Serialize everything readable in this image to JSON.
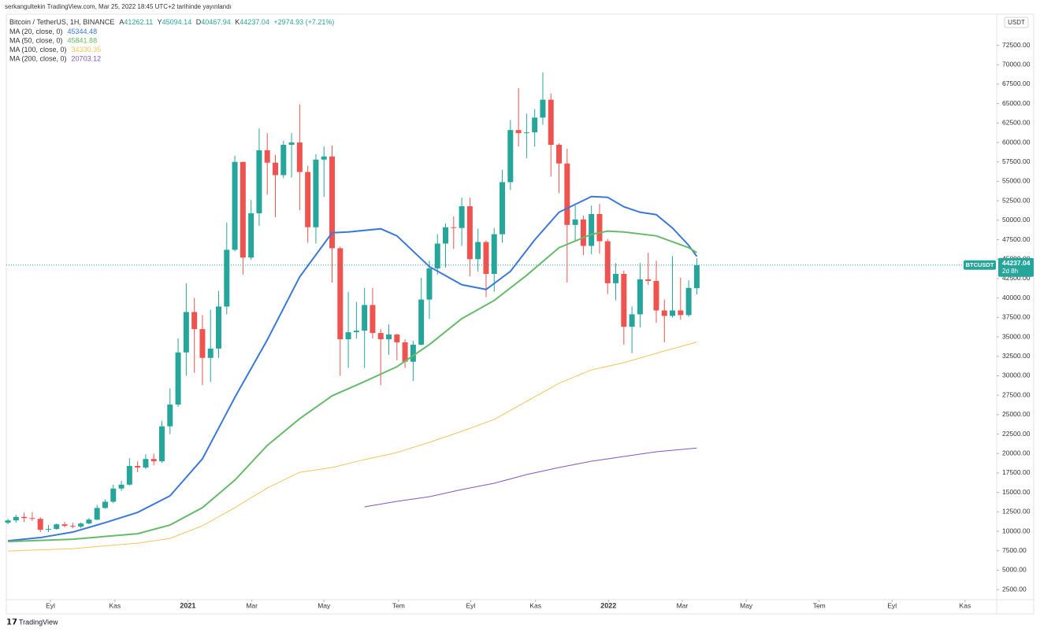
{
  "published": "serkangultekin TradingView.com, Mar 25, 2022 18:45 UTC+2 tarihinde yayınlandı",
  "brand": "TradingView",
  "chart_data": {
    "type": "candlestick",
    "symbol": "Bitcoin / TetherUS, 1H, BINANCE",
    "ohlc_labels": [
      "A",
      "Y",
      "D",
      "K"
    ],
    "change": "+2974.93 (+7.21%)",
    "currency": "USDT",
    "ticker": "BTCUSDT",
    "countdown": "2d 8h",
    "up_color": "#26a69a",
    "down_color": "#ef5350",
    "candles": {
      "open": [
        11100,
        11400,
        11850,
        11700,
        11600,
        10200,
        10300,
        10900,
        10700,
        10600,
        11000,
        11500,
        13000,
        13800,
        15500,
        16000,
        18400,
        18200,
        19300,
        19000,
        23500,
        26300,
        33000,
        38200,
        36000,
        32300,
        33500,
        38900,
        46200,
        57500,
        45200,
        50900,
        59000,
        57400,
        55800,
        59700,
        60000,
        56200,
        49100,
        57800,
        58200,
        46400,
        34700,
        35600,
        35800,
        39100,
        35500,
        34700,
        35300,
        34300,
        31800,
        34000,
        39800,
        43800,
        47000,
        49100,
        49000,
        51800,
        45000,
        47200,
        43100,
        48200,
        54900,
        61600,
        61200,
        61300,
        63200,
        65500,
        59700,
        57300,
        49400,
        50100,
        46700,
        50800,
        47300,
        41900,
        43100,
        36300,
        37900,
        42400,
        42200,
        38400,
        37700,
        38400,
        37800,
        41262.11
      ],
      "high": [
        11600,
        12100,
        12400,
        12450,
        11800,
        10800,
        11000,
        11200,
        11100,
        11150,
        11700,
        13400,
        14100,
        16000,
        16500,
        19400,
        19000,
        19900,
        20000,
        24200,
        28400,
        34800,
        41900,
        40000,
        37800,
        38500,
        40900,
        49700,
        58300,
        57500,
        52600,
        61800,
        61200,
        58400,
        60200,
        61200,
        64900,
        57000,
        58500,
        59500,
        59600,
        46600,
        40800,
        39500,
        41300,
        41300,
        36000,
        36600,
        35400,
        34700,
        34500,
        42600,
        44800,
        48200,
        49600,
        50500,
        52900,
        52900,
        48900,
        47400,
        49000,
        56500,
        62900,
        67000,
        63700,
        64300,
        69000,
        66300,
        59900,
        59200,
        51900,
        50600,
        51900,
        52100,
        47600,
        44500,
        43500,
        38900,
        44500,
        45800,
        44800,
        39800,
        45400,
        42600,
        42300,
        45094.14
      ],
      "low": [
        10900,
        11100,
        11200,
        11350,
        9900,
        9900,
        10200,
        10500,
        10400,
        10400,
        10900,
        11400,
        12900,
        13600,
        15200,
        15900,
        17600,
        18000,
        18500,
        18800,
        22500,
        26000,
        30000,
        30400,
        28800,
        29200,
        32300,
        37900,
        46000,
        43000,
        44900,
        49300,
        53300,
        50400,
        55400,
        55500,
        51300,
        47100,
        47000,
        53000,
        42000,
        30000,
        31000,
        34800,
        31000,
        34800,
        28800,
        32700,
        32000,
        31000,
        29300,
        33900,
        37300,
        43000,
        43900,
        46300,
        46700,
        42800,
        43400,
        40100,
        40800,
        47100,
        53900,
        59500,
        58000,
        59500,
        62300,
        55600,
        53500,
        42000,
        47300,
        45500,
        45600,
        45700,
        40500,
        39700,
        34000,
        32900,
        36200,
        41700,
        36800,
        34300,
        37500,
        37200,
        37600,
        40467.94
      ],
      "close": [
        11400,
        11850,
        11700,
        11600,
        10200,
        10300,
        10900,
        10700,
        10600,
        11000,
        11500,
        13000,
        13800,
        15500,
        16000,
        18400,
        18200,
        19300,
        19000,
        23500,
        26300,
        33000,
        38200,
        36000,
        32300,
        33500,
        38900,
        46200,
        57500,
        45200,
        50900,
        59000,
        57400,
        55800,
        59700,
        60000,
        56200,
        49100,
        57800,
        58200,
        46400,
        34700,
        35600,
        35800,
        39100,
        35500,
        34700,
        35300,
        34300,
        31800,
        34000,
        39800,
        43800,
        47000,
        49100,
        49000,
        51800,
        45000,
        47200,
        43100,
        48200,
        54900,
        61600,
        61200,
        61300,
        63200,
        65500,
        59700,
        57300,
        49400,
        50100,
        46700,
        50800,
        47300,
        41900,
        43100,
        36300,
        37900,
        42400,
        42200,
        38400,
        37700,
        38400,
        37800,
        41300,
        44237.04
      ]
    },
    "series": [
      {
        "name": "MA (20, close, 0)",
        "color": "#3b78d8",
        "x": [
          0,
          4,
          8,
          12,
          16,
          20,
          24,
          28,
          32,
          36,
          40,
          42,
          46,
          48,
          52,
          56,
          59,
          62,
          65,
          68,
          72,
          74,
          76,
          78,
          80,
          82,
          84,
          85
        ],
        "values": [
          8780,
          9190,
          9900,
          11110,
          12430,
          14560,
          19320,
          27220,
          34610,
          42720,
          48390,
          48490,
          48900,
          47990,
          44040,
          41710,
          41100,
          43430,
          47480,
          51030,
          53050,
          52950,
          51730,
          51030,
          50720,
          49000,
          46770,
          45344.48
        ]
      },
      {
        "name": "MA (50, close, 0)",
        "color": "#66bb6a",
        "x": [
          0,
          8,
          16,
          20,
          24,
          28,
          32,
          36,
          40,
          44,
          48,
          52,
          56,
          60,
          64,
          68,
          72,
          74,
          76,
          80,
          84,
          85
        ],
        "values": [
          8680,
          8980,
          9690,
          10810,
          13040,
          16580,
          21040,
          24480,
          27420,
          29250,
          31170,
          34010,
          37350,
          39680,
          42920,
          46470,
          48190,
          48600,
          48490,
          47990,
          46470,
          45841.88
        ]
      },
      {
        "name": "MA (100, close, 0)",
        "color": "#f2c45a",
        "x": [
          0,
          8,
          16,
          20,
          24,
          28,
          32,
          36,
          40,
          44,
          48,
          52,
          56,
          60,
          64,
          68,
          72,
          76,
          80,
          85
        ],
        "values": [
          7460,
          7770,
          8480,
          9080,
          10710,
          13040,
          15570,
          17590,
          18200,
          19220,
          20130,
          21440,
          22860,
          24380,
          26710,
          29040,
          30760,
          31680,
          32890,
          34330.35
        ]
      },
      {
        "name": "MA (200, close, 0)",
        "color": "#7e57c2",
        "x": [
          44,
          48,
          52,
          56,
          60,
          64,
          68,
          72,
          76,
          80,
          85
        ],
        "values": [
          13140,
          13850,
          14450,
          15370,
          16180,
          17290,
          18200,
          19010,
          19620,
          20230,
          20703.12
        ]
      }
    ],
    "xlim": [
      -0.2,
      122
    ],
    "xticks": [
      {
        "value": 5.25,
        "label": "Eyl"
      },
      {
        "value": 13.2,
        "label": "Kas"
      },
      {
        "value": 22.2,
        "label": "2021"
      },
      {
        "value": 30.1,
        "label": "Mar"
      },
      {
        "value": 39.0,
        "label": "May"
      },
      {
        "value": 48.2,
        "label": "Tem"
      },
      {
        "value": 57.1,
        "label": "Eyl"
      },
      {
        "value": 65.1,
        "label": "Kas"
      },
      {
        "value": 74.1,
        "label": "2022"
      },
      {
        "value": 83.2,
        "label": "Mar"
      },
      {
        "value": 91.1,
        "label": "May"
      },
      {
        "value": 100.1,
        "label": "Tem"
      },
      {
        "value": 109.1,
        "label": "Eyl"
      },
      {
        "value": 118.1,
        "label": "Kas"
      }
    ],
    "ylim": [
      1200,
      76500
    ],
    "yticks": [
      {
        "value": 2500,
        "label": "2500.00"
      },
      {
        "value": 5000,
        "label": "5000.00"
      },
      {
        "value": 7500,
        "label": "7500.00"
      },
      {
        "value": 10000,
        "label": "10000.00"
      },
      {
        "value": 12500,
        "label": "12500.00"
      },
      {
        "value": 15000,
        "label": "15000.00"
      },
      {
        "value": 17500,
        "label": "17500.00"
      },
      {
        "value": 20000,
        "label": "20000.00"
      },
      {
        "value": 22500,
        "label": "22500.00"
      },
      {
        "value": 25000,
        "label": "25000.00"
      },
      {
        "value": 27500,
        "label": "27500.00"
      },
      {
        "value": 30000,
        "label": "30000.00"
      },
      {
        "value": 32500,
        "label": "32500.00"
      },
      {
        "value": 35000,
        "label": "35000.00"
      },
      {
        "value": 37500,
        "label": "37500.00"
      },
      {
        "value": 40000,
        "label": "40000.00"
      },
      {
        "value": 42500,
        "label": "42500.00"
      },
      {
        "value": 45000,
        "label": "45000.00"
      },
      {
        "value": 47500,
        "label": "47500.00"
      },
      {
        "value": 50000,
        "label": "50000.00"
      },
      {
        "value": 52500,
        "label": "52500.00"
      },
      {
        "value": 55000,
        "label": "55000.00"
      },
      {
        "value": 57500,
        "label": "57500.00"
      },
      {
        "value": 60000,
        "label": "60000.00"
      },
      {
        "value": 62500,
        "label": "62500.00"
      },
      {
        "value": 65000,
        "label": "65000.00"
      },
      {
        "value": 67500,
        "label": "67500.00"
      },
      {
        "value": 70000,
        "label": "70000.00"
      },
      {
        "value": 72500,
        "label": "72500.00"
      }
    ],
    "grid": false
  }
}
